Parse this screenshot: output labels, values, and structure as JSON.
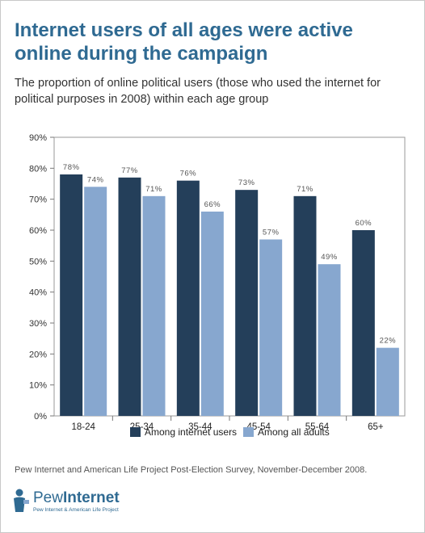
{
  "title": "Internet users of all ages were active online during the campaign",
  "subtitle": "The proportion of online political users (those who used the internet for political purposes in 2008) within each age group",
  "source": "Pew Internet and American Life Project Post-Election Survey, November-December 2008.",
  "logo": {
    "word_1": "Pew",
    "word_2": "Internet",
    "tagline": "Pew Internet & American Life Project"
  },
  "colors": {
    "internet_users": "#243f5a",
    "all_adults": "#87a7cf",
    "title": "#2f6a92"
  },
  "chart_data": {
    "type": "bar",
    "categories": [
      "18-24",
      "25-34",
      "35-44",
      "45-54",
      "55-64",
      "65+"
    ],
    "series": [
      {
        "name": "Among internet users",
        "values": [
          78,
          77,
          76,
          73,
          71,
          60
        ],
        "labels": [
          "78%",
          "77%",
          "76%",
          "73%",
          "71%",
          "60%"
        ]
      },
      {
        "name": "Among all adults",
        "values": [
          74,
          71,
          66,
          57,
          49,
          22
        ],
        "labels": [
          "74%",
          "71%",
          "66%",
          "57%",
          "49%",
          "22%"
        ]
      }
    ],
    "ylim": [
      0,
      90
    ],
    "yticks": [
      0,
      10,
      20,
      30,
      40,
      50,
      60,
      70,
      80,
      90
    ],
    "ytick_labels": [
      "0%",
      "10%",
      "20%",
      "30%",
      "40%",
      "50%",
      "60%",
      "70%",
      "80%",
      "90%"
    ],
    "grid": false,
    "legend": "bottom"
  }
}
